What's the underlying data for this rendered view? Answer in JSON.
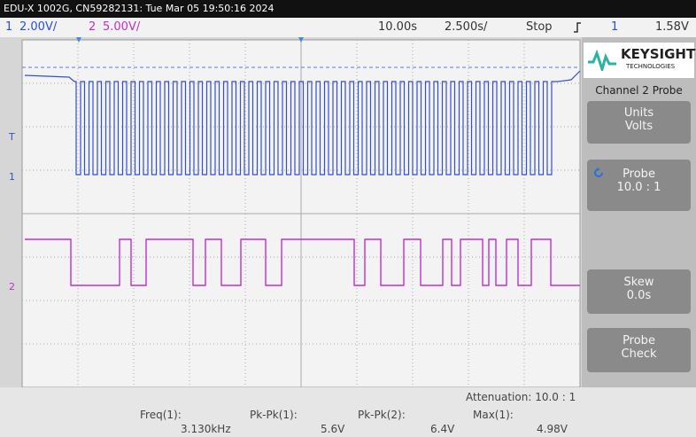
{
  "header": {
    "title": "EDU-X 1002G, CN59282131: Tue Mar 05 19:50:16 2024"
  },
  "status_bar": {
    "ch1_label": "1",
    "ch1_scale": "2.00V/",
    "ch2_label": "2",
    "ch2_scale": "5.00V/",
    "time_offset": "10.00s",
    "time_scale": "2.500s/",
    "run_state": "Stop",
    "trigger_source": "1",
    "trigger_level": "1.58V"
  },
  "plot": {
    "trigger_marker": "T",
    "ch1_marker": "1",
    "ch2_marker": "2"
  },
  "panel": {
    "brand": "KEYSIGHT",
    "brand_sub": "TECHNOLOGIES",
    "menu_title": "Channel 2 Probe",
    "buttons": [
      {
        "label": "Units",
        "value": "Volts"
      },
      {
        "label": "Probe",
        "value": "10.0 : 1"
      },
      {
        "label": "Skew",
        "value": "0.0s"
      },
      {
        "label": "Probe",
        "value": "Check"
      }
    ]
  },
  "footer": {
    "attenuation": "Attenuation: 10.0 : 1",
    "measurements": [
      {
        "label": "Freq(1):",
        "value": "3.130kHz"
      },
      {
        "label": "Pk-Pk(1):",
        "value": "5.6V"
      },
      {
        "label": "Pk-Pk(2):",
        "value": "6.4V"
      },
      {
        "label": "Max(1):",
        "value": "4.98V"
      }
    ]
  }
}
